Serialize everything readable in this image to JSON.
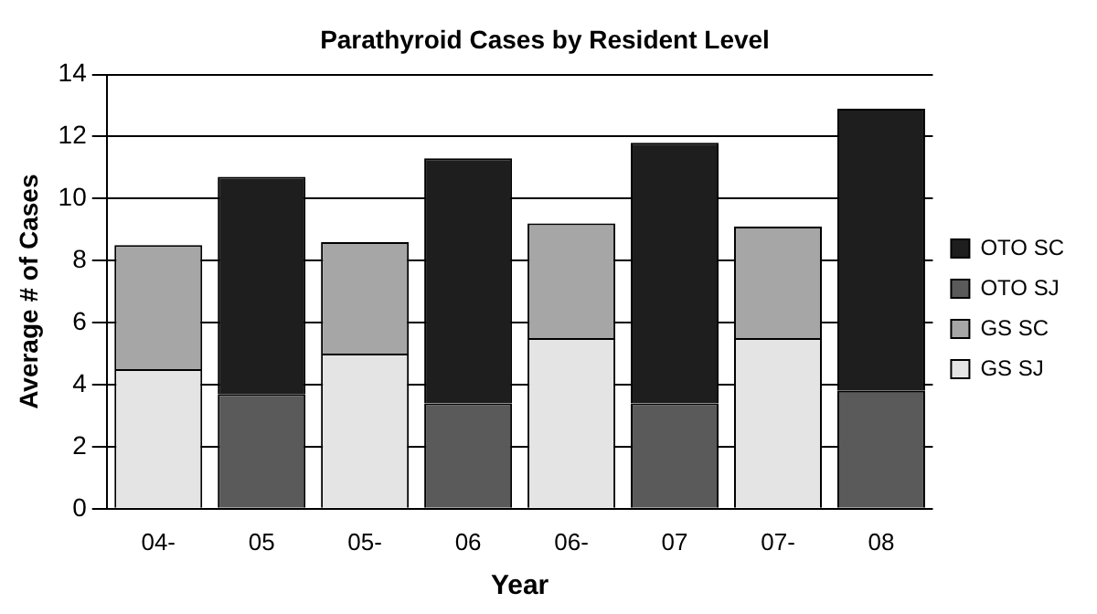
{
  "chart_data": {
    "type": "bar",
    "title": "Parathyroid Cases by Resident Level",
    "xlabel": "Year",
    "ylabel": "Average # of Cases",
    "categories": [
      "04-",
      "05",
      "05-",
      "06",
      "06-",
      "07",
      "07-",
      "08"
    ],
    "stacked": true,
    "series": [
      {
        "name": "GS SJ",
        "color": "#e4e4e4",
        "values": [
          4.5,
          null,
          5.0,
          null,
          5.5,
          null,
          5.5,
          null
        ]
      },
      {
        "name": "GS SC",
        "color": "#a6a6a6",
        "values": [
          4.0,
          null,
          3.6,
          null,
          3.7,
          null,
          3.6,
          null
        ]
      },
      {
        "name": "OTO SJ",
        "color": "#5a5a5a",
        "values": [
          null,
          3.7,
          null,
          3.4,
          null,
          3.4,
          null,
          3.8
        ]
      },
      {
        "name": "OTO SC",
        "color": "#1e1e1e",
        "values": [
          null,
          7.0,
          null,
          7.9,
          null,
          8.4,
          null,
          9.1
        ]
      }
    ],
    "ylim": [
      0,
      14
    ],
    "yticks": [
      0,
      2,
      4,
      6,
      8,
      10,
      12,
      14
    ],
    "grid": "y",
    "legend": "right"
  }
}
